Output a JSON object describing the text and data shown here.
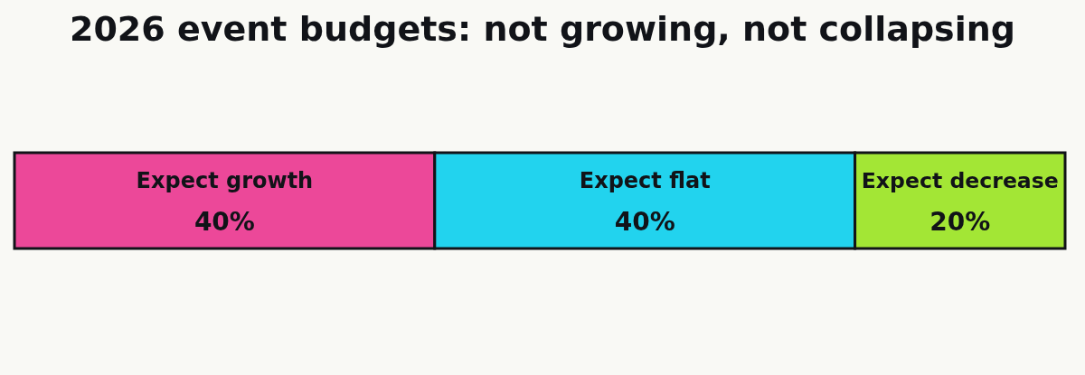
{
  "chart_data": {
    "type": "bar",
    "title": "2026 event budgets: not growing, not collapsing",
    "orientation": "horizontal",
    "stacked": true,
    "categories": [
      null
    ],
    "series": [
      {
        "name": "Expect growth",
        "color": "#ec4899",
        "values": [
          40
        ],
        "value_labels": [
          "40%"
        ]
      },
      {
        "name": "Expect flat",
        "color": "#22d3ee",
        "values": [
          40
        ],
        "value_labels": [
          "40%"
        ]
      },
      {
        "name": "Expect decrease",
        "color": "#a3e635",
        "values": [
          20
        ],
        "value_labels": [
          "20%"
        ]
      }
    ]
  }
}
